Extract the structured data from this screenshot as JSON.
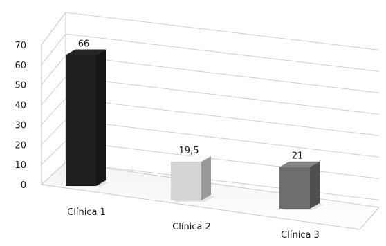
{
  "chart_data": {
    "type": "bar",
    "style": "3d-perspective",
    "categories": [
      "Clínica 1",
      "Clínica 2",
      "Clínica 3"
    ],
    "values": [
      66,
      19.5,
      21
    ],
    "value_labels": [
      "66",
      "19,5",
      "21"
    ],
    "title": "",
    "xlabel": "",
    "ylabel": "",
    "ylim": [
      0,
      70
    ],
    "yticks": [
      0,
      10,
      20,
      30,
      40,
      50,
      60,
      70
    ],
    "grid": true,
    "legend": "none",
    "bar_colors": [
      "#1f1f1f",
      "#d4d4d4",
      "#6e6e6e"
    ]
  }
}
